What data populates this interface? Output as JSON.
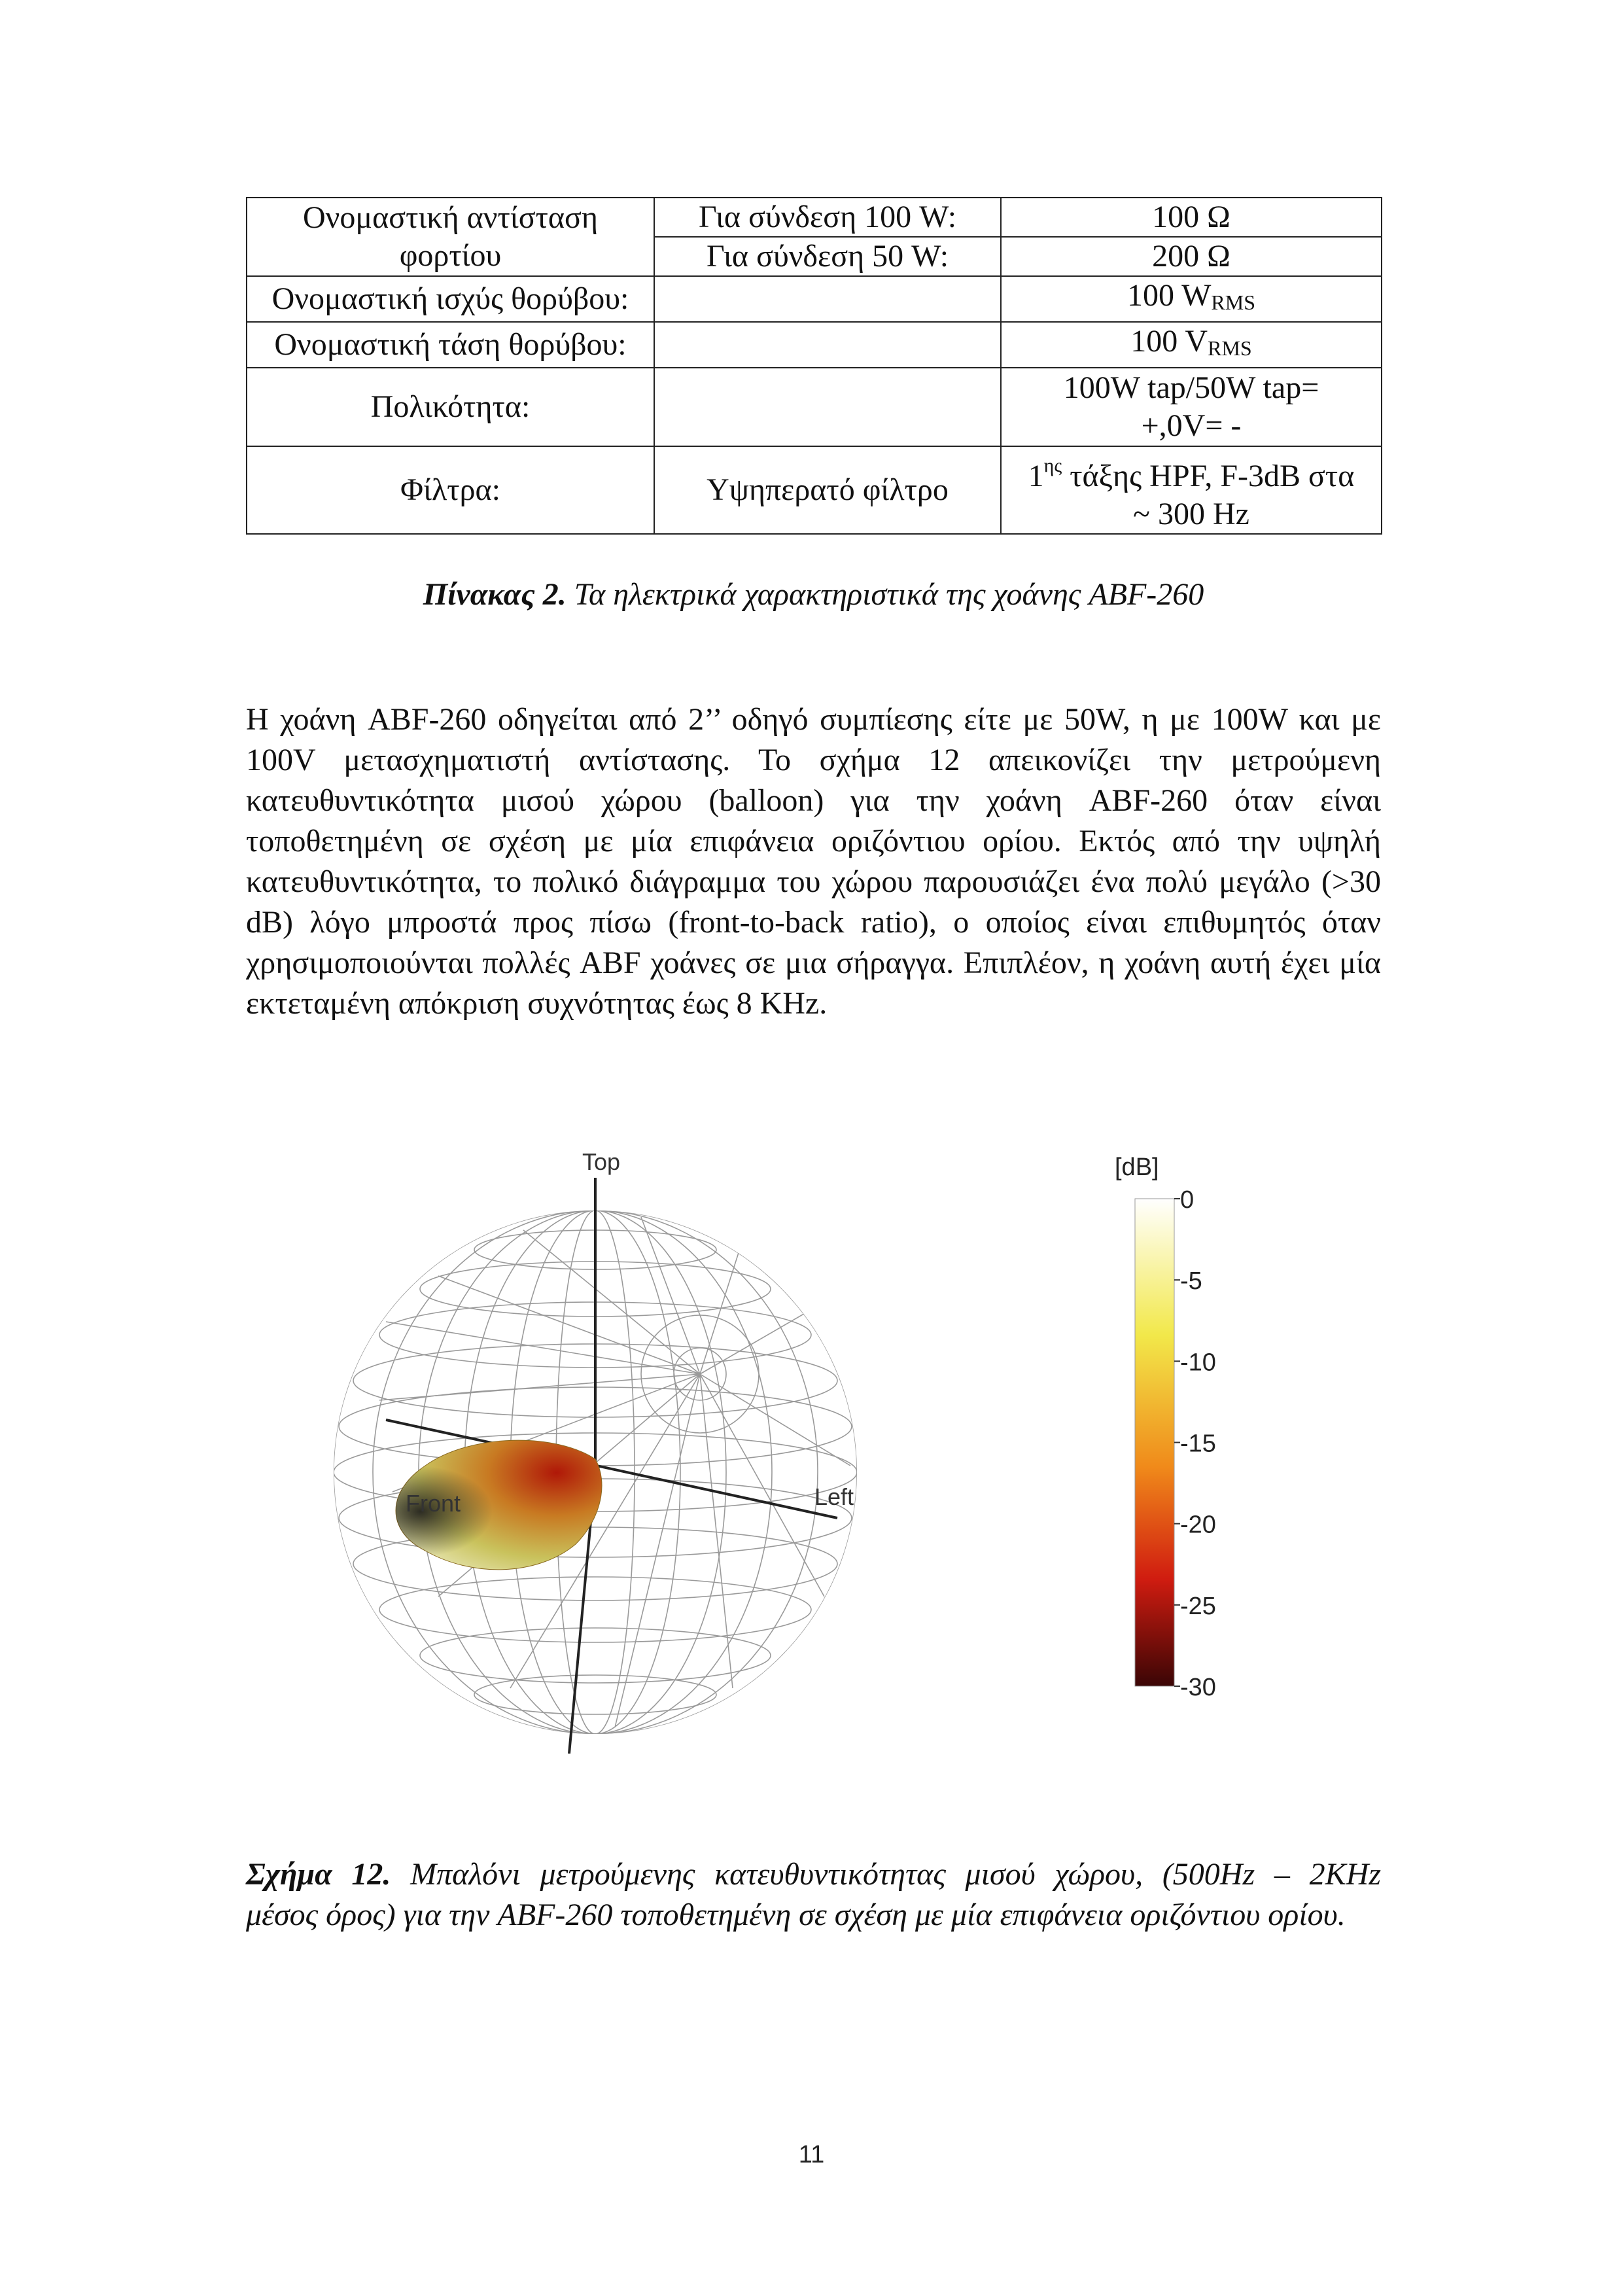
{
  "table": {
    "load_impedance_label": "Ονομαστική αντίσταση φορτίου",
    "conn_100w_label": "Για σύνδεση 100 W:",
    "conn_100w_value": "100 Ω",
    "conn_50w_label": "Για σύνδεση 50 W:",
    "conn_50w_value": "200 Ω",
    "noise_power_label": "Ονομαστική ισχύς θορύβου:",
    "noise_power_value": "100 W",
    "noise_power_sub": "RMS",
    "noise_voltage_label": "Ονομαστική τάση θορύβου:",
    "noise_voltage_value": "100 V",
    "noise_voltage_sub": "RMS",
    "polarity_label": "Πολικότητα:",
    "polarity_value_line1": "100W tap/50W tap=",
    "polarity_value_line2": "+,0V= -",
    "filters_label": "Φίλτρα:",
    "filters_type": "Υψηπερατό φίλτρο",
    "filters_value_num": "1",
    "filters_value_sup": "ης",
    "filters_value_rest": " τάξης HPF, F-3dB στα",
    "filters_value_line2": "~ 300 Hz"
  },
  "table_caption": {
    "label": "Πίνακας 2.",
    "text": " Τα ηλεκτρικά χαρακτηριστικά της χοάνης ABF-260"
  },
  "paragraph": "Η χοάνη ABF-260 οδηγείται από 2’’ οδηγό συμπίεσης είτε με 50W, η με 100W και με 100V μετασχηματιστή αντίστασης. Το σχήμα 12 απεικονίζει την μετρούμενη κατευθυντικότητα μισού χώρου (balloon) για την χοάνη ABF-260 όταν είναι τοποθετημένη σε σχέση με μία επιφάνεια οριζόντιου ορίου. Εκτός από την υψηλή κατευθυντικότητα, το πολικό διάγραμμα του χώρου παρουσιάζει ένα πολύ μεγάλο (>30 dB) λόγο μπροστά προς πίσω (front-to-back ratio), ο οποίος είναι επιθυμητός όταν χρησιμοποιούνται πολλές ABF χοάνες σε μια σήραγγα. Επιπλέον, η χοάνη αυτή έχει μία εκτεταμένη απόκριση συχνότητας έως 8 KHz.",
  "figure": {
    "axis_top": "Top",
    "axis_front": "Front",
    "axis_left": "Left",
    "colorbar_unit": "[dB]",
    "colorbar_ticks": [
      "0",
      "-5",
      "-10",
      "-15",
      "-20",
      "-25",
      "-30"
    ],
    "colors": {
      "white": "#ffffff",
      "yellow": "#f2e84a",
      "orange": "#f08a1a",
      "red": "#d01c10",
      "dark": "#3a0505"
    }
  },
  "figure_caption": {
    "label": "Σχήμα 12.",
    "line1": " Μπαλόνι μετρούμενης κατευθυντικότητας μισού χώρου, (500Hz – 2KHz",
    "line2": "μέσος όρος) για την ABF-260 τοποθετημένη σε σχέση με μία επιφάνεια οριζόντιου ορίου."
  },
  "page_number": "11"
}
